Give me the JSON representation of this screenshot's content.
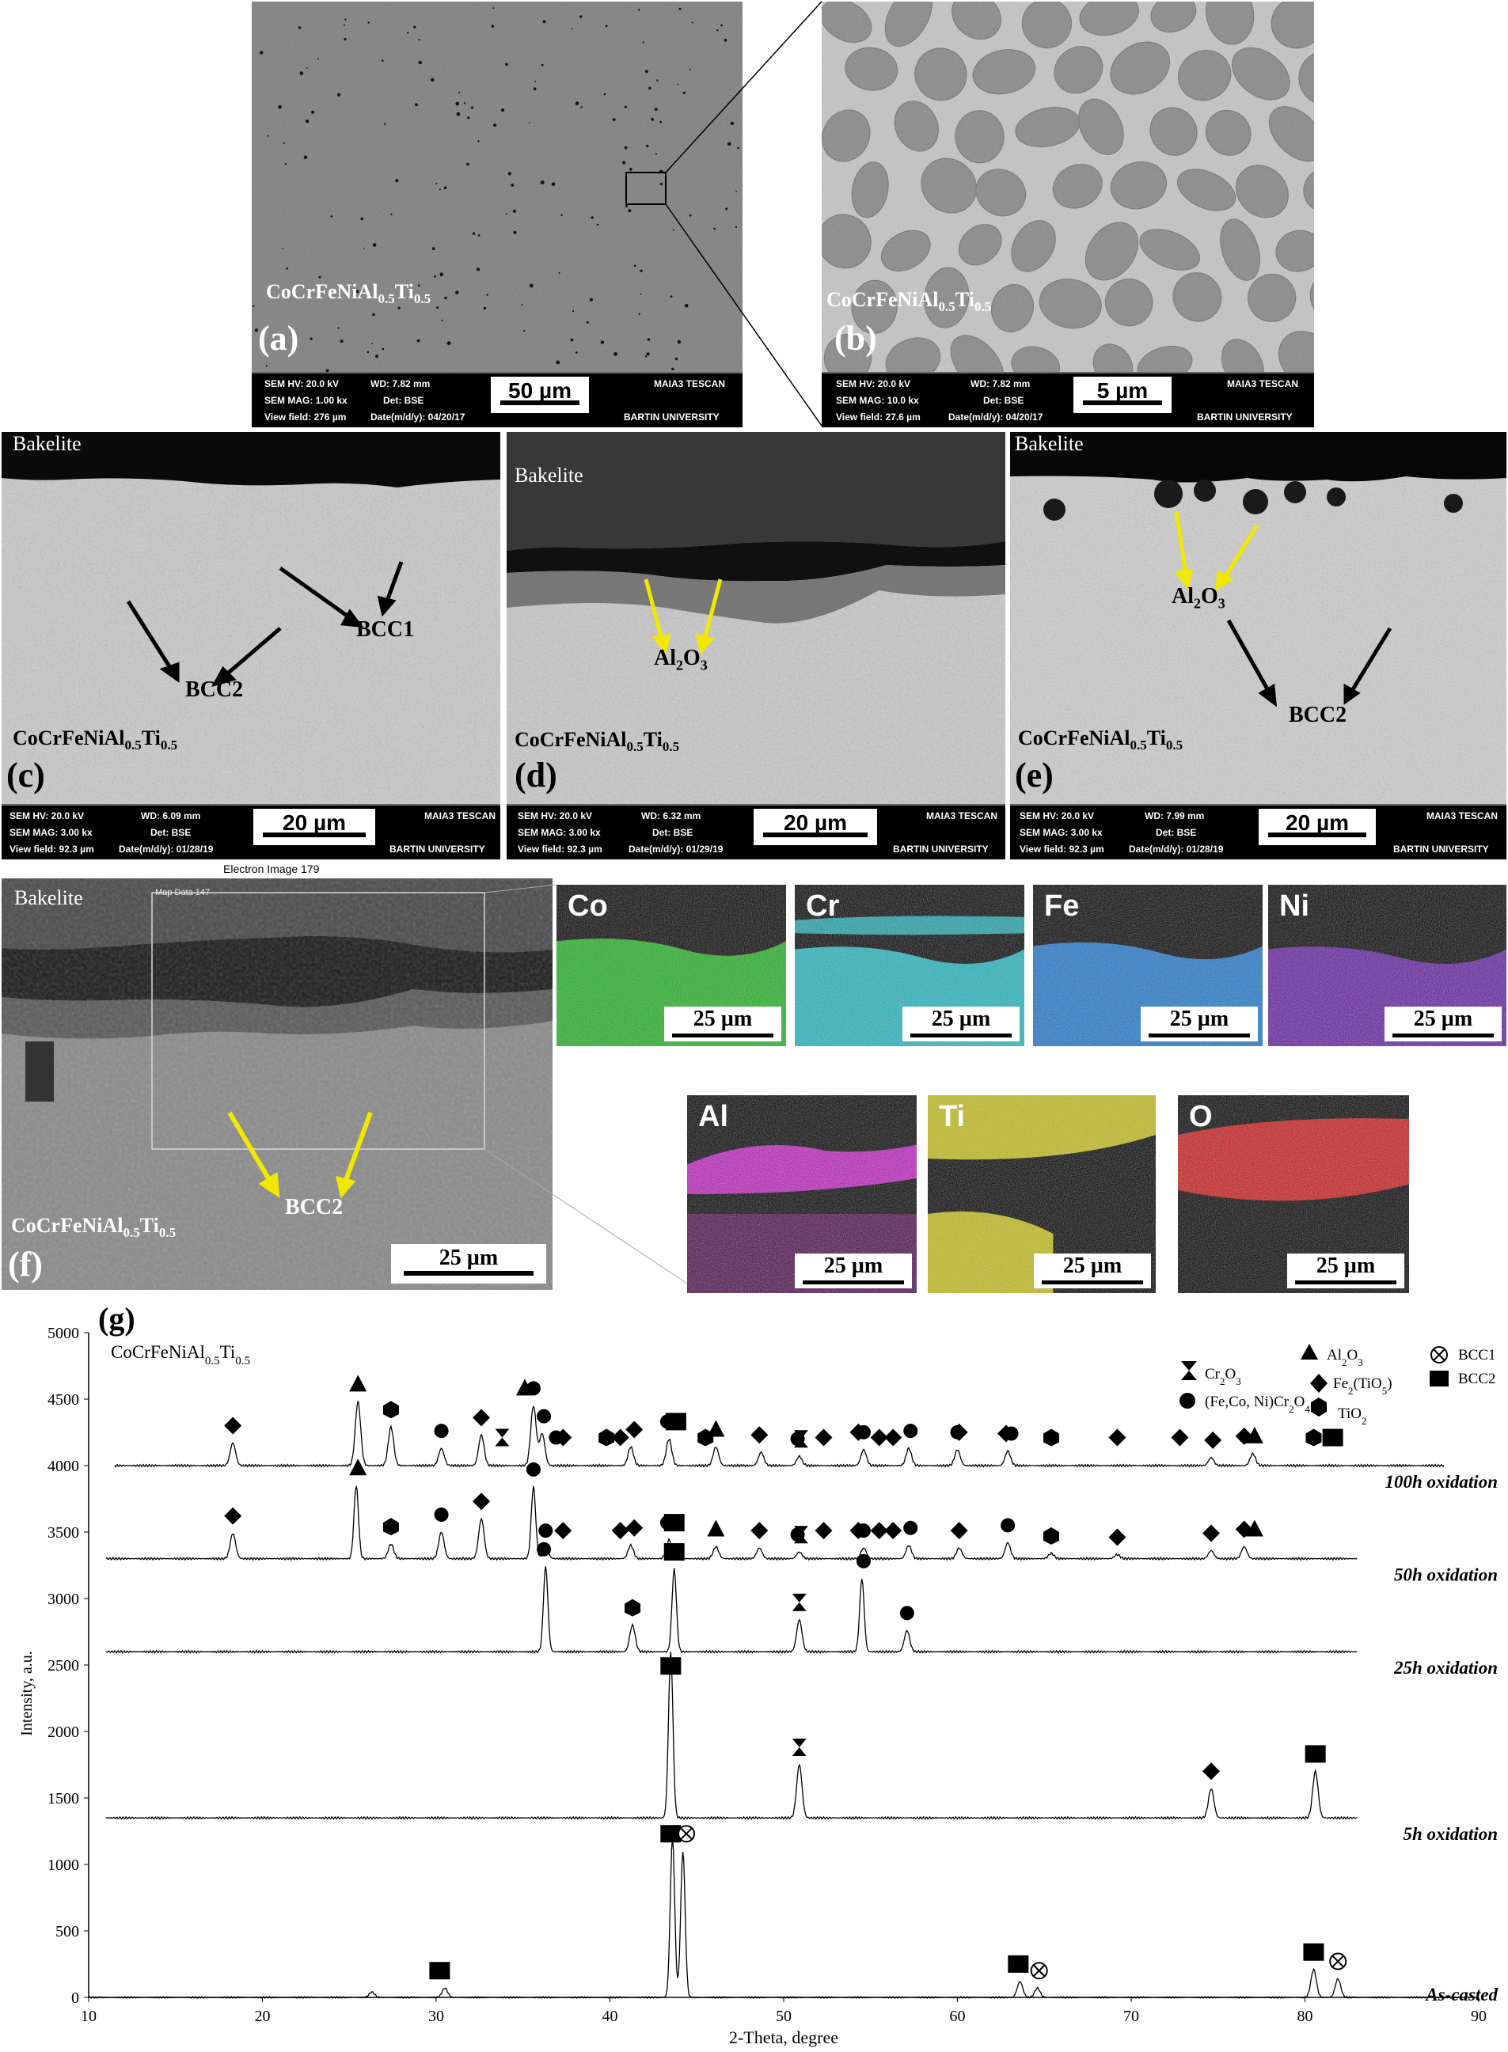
{
  "panels": {
    "a": {
      "label": "(a)",
      "title": "CoCrFeNiAl",
      "title_sub1": "0.5",
      "title_mid": "Ti",
      "title_sub2": "0.5",
      "info": {
        "hv": "SEM HV: 20.0 kV",
        "wd": "WD: 7.82 mm",
        "brand": "MAIA3 TESCAN",
        "mag": "SEM MAG: 1.00 kx",
        "det": "Det: BSE",
        "vf": "View field: 276 µm",
        "date": "Date(m/d/y): 04/20/17",
        "univ": "BARTIN UNIVERSITY"
      },
      "scale": "50 µm"
    },
    "b": {
      "label": "(b)",
      "title": "CoCrFeNiAl",
      "title_sub1": "0.5",
      "title_mid": "Ti",
      "title_sub2": "0.5",
      "info": {
        "hv": "SEM HV: 20.0 kV",
        "wd": "WD: 7.82 mm",
        "brand": "MAIA3 TESCAN",
        "mag": "SEM MAG: 10.0 kx",
        "det": "Det: BSE",
        "vf": "View field: 27.6 µm",
        "date": "Date(m/d/y): 04/20/17",
        "univ": "BARTIN UNIVERSITY"
      },
      "scale": "5 µm"
    },
    "c": {
      "label": "(c)",
      "bakelite": "Bakelite",
      "title": "CoCrFeNiAl",
      "title_sub1": "0.5",
      "title_mid": "Ti",
      "title_sub2": "0.5",
      "ann1": "BCC1",
      "ann2": "BCC2",
      "info": {
        "hv": "SEM HV: 20.0 kV",
        "wd": "WD: 6.09 mm",
        "brand": "MAIA3 TESCAN",
        "mag": "SEM MAG: 3.00 kx",
        "det": "Det: BSE",
        "vf": "View field: 92.3 µm",
        "date": "Date(m/d/y): 01/28/19",
        "univ": "BARTIN UNIVERSITY"
      },
      "scale": "20 µm"
    },
    "d": {
      "label": "(d)",
      "bakelite": "Bakelite",
      "title": "CoCrFeNiAl",
      "title_sub1": "0.5",
      "title_mid": "Ti",
      "title_sub2": "0.5",
      "ann_main": "Al",
      "ann_sub1": "2",
      "ann_mid": "O",
      "ann_sub2": "3",
      "info": {
        "hv": "SEM HV: 20.0 kV",
        "wd": "WD: 6.32 mm",
        "brand": "MAIA3 TESCAN",
        "mag": "SEM MAG: 3.00 kx",
        "det": "Det: BSE",
        "vf": "View field: 92.3 µm",
        "date": "Date(m/d/y): 01/29/19",
        "univ": "BARTIN UNIVERSITY"
      },
      "scale": "20 µm"
    },
    "e": {
      "label": "(e)",
      "bakelite": "Bakelite",
      "title": "CoCrFeNiAl",
      "title_sub1": "0.5",
      "title_mid": "Ti",
      "title_sub2": "0.5",
      "ann_main": "Al",
      "ann_sub1": "2",
      "ann_mid": "O",
      "ann_sub2": "3",
      "ann2": "BCC2",
      "info": {
        "hv": "SEM HV: 20.0 kV",
        "wd": "WD: 7.99 mm",
        "brand": "MAIA3 TESCAN",
        "mag": "SEM MAG: 3.00 kx",
        "det": "Det: BSE",
        "vf": "View field: 92.3 µm",
        "date": "Date(m/d/y): 01/28/19",
        "univ": "BARTIN UNIVERSITY"
      },
      "scale": "20 µm"
    },
    "f": {
      "label": "(f)",
      "bakelite": "Bakelite",
      "title": "CoCrFeNiAl",
      "title_sub1": "0.5",
      "title_mid": "Ti",
      "title_sub2": "0.5",
      "ann": "BCC2",
      "header": "Electron Image 179",
      "map_label": "Map Data 147",
      "scale": "25 µm"
    }
  },
  "maps": [
    {
      "element": "Co",
      "scale": "25 µm",
      "color": "#22c322"
    },
    {
      "element": "Cr",
      "scale": "25 µm",
      "color": "#22c8d2"
    },
    {
      "element": "Fe",
      "scale": "25 µm",
      "color": "#1e7fe0"
    },
    {
      "element": "Ni",
      "scale": "25 µm",
      "color": "#6a1fb0"
    },
    {
      "element": "Al",
      "scale": "25 µm",
      "color": "#d020d0"
    },
    {
      "element": "Ti",
      "scale": "25 µm",
      "color": "#d8d018"
    },
    {
      "element": "O",
      "scale": "25 µm",
      "color": "#e01818"
    }
  ],
  "xrd": {
    "label": "(g)",
    "sample": "CoCrFeNiAl",
    "ylabel": "Intensity, a.u.",
    "xlabel": "2-Theta, degree",
    "legend": {
      "cr2o3": "Cr",
      "cr2o3_a": "2",
      "cr2o3_b": "O",
      "cr2o3_c": "3",
      "spinel": "(Fe,Co, Ni)Cr",
      "spinel_a": "2",
      "spinel_b": "O",
      "spinel_c": "4",
      "al2o3": "Al",
      "al2o3_a": "2",
      "al2o3_b": "O",
      "al2o3_c": "3",
      "fetio": "Fe",
      "fetio_a": "2",
      "fetio_b": "(TiO",
      "fetio_c": "5",
      "fetio_d": ")",
      "tio2": "TiO",
      "tio2_a": "2",
      "bcc1": "BCC1",
      "bcc2": "BCC2"
    }
  },
  "chart_data": {
    "type": "line",
    "xlabel": "2-Theta, degree",
    "ylabel": "Intensity, a.u.",
    "xlim": [
      10,
      90
    ],
    "ylim": [
      0,
      5000
    ],
    "x_ticks": [
      10,
      20,
      30,
      40,
      50,
      60,
      70,
      80,
      90
    ],
    "y_ticks": [
      0,
      500,
      1000,
      1500,
      2000,
      2500,
      3000,
      3500,
      4000,
      4500,
      5000
    ],
    "series": [
      {
        "name": "As-casted",
        "baseline": 0,
        "peaks": [
          [
            26.3,
            40
          ],
          [
            30.5,
            70
          ],
          [
            43.6,
            1200
          ],
          [
            44.2,
            1100
          ],
          [
            63.6,
            120
          ],
          [
            64.6,
            70
          ],
          [
            80.5,
            210
          ],
          [
            81.9,
            140
          ]
        ]
      },
      {
        "name": "5h oxidation",
        "baseline": 1350,
        "peaks": [
          [
            43.5,
            2600
          ],
          [
            50.9,
            1750
          ],
          [
            74.6,
            1570
          ],
          [
            80.6,
            1700
          ]
        ]
      },
      {
        "name": "25h oxidation",
        "baseline": 2600,
        "peaks": [
          [
            36.3,
            3240
          ],
          [
            41.3,
            2800
          ],
          [
            43.7,
            3220
          ],
          [
            50.9,
            2840
          ],
          [
            54.5,
            3150
          ],
          [
            57.1,
            2760
          ]
        ]
      },
      {
        "name": "50h oxidation",
        "baseline": 3300,
        "peaks": [
          [
            18.3,
            3490
          ],
          [
            25.4,
            3850
          ],
          [
            27.4,
            3410
          ],
          [
            30.3,
            3500
          ],
          [
            32.6,
            3600
          ],
          [
            35.6,
            3840
          ],
          [
            36.3,
            3380
          ],
          [
            41.2,
            3400
          ],
          [
            43.4,
            3440
          ],
          [
            46.1,
            3390
          ],
          [
            48.6,
            3380
          ],
          [
            50.9,
            3350
          ],
          [
            54.6,
            3380
          ],
          [
            57.2,
            3400
          ],
          [
            60.1,
            3380
          ],
          [
            62.9,
            3420
          ],
          [
            65.4,
            3340
          ],
          [
            69.2,
            3330
          ],
          [
            74.6,
            3360
          ],
          [
            76.5,
            3390
          ]
        ]
      },
      {
        "name": "100h oxidation",
        "baseline": 4000,
        "peaks": [
          [
            18.3,
            4170
          ],
          [
            25.5,
            4480
          ],
          [
            27.4,
            4290
          ],
          [
            30.3,
            4130
          ],
          [
            32.6,
            4230
          ],
          [
            35.6,
            4450
          ],
          [
            36.1,
            4240
          ],
          [
            41.2,
            4140
          ],
          [
            43.4,
            4200
          ],
          [
            46.1,
            4140
          ],
          [
            48.7,
            4100
          ],
          [
            50.9,
            4070
          ],
          [
            54.6,
            4120
          ],
          [
            57.2,
            4130
          ],
          [
            60.0,
            4120
          ],
          [
            62.9,
            4110
          ],
          [
            74.6,
            4060
          ],
          [
            77.0,
            4090
          ]
        ]
      }
    ],
    "markers": [
      {
        "s": "100h oxidation",
        "sym": "diamond",
        "x": [
          18.3,
          32.6,
          37.3,
          40.6,
          41.4,
          48.6,
          52.3,
          54.3,
          55.5,
          56.3,
          60.1,
          62.8,
          69.2,
          72.8,
          74.7,
          76.5
        ]
      },
      {
        "s": "100h oxidation",
        "sym": "triangle",
        "x": [
          25.5,
          35.1,
          46.1,
          77.1
        ]
      },
      {
        "s": "100h oxidation",
        "sym": "hexagon",
        "x": [
          27.4,
          39.8,
          45.5,
          65.4,
          80.5
        ]
      },
      {
        "s": "100h oxidation",
        "sym": "circle",
        "x": [
          30.3,
          35.6,
          36.2,
          36.9,
          43.3,
          50.8,
          54.6,
          57.3,
          60.0,
          63.1
        ]
      },
      {
        "s": "100h oxidation",
        "sym": "hourglass",
        "x": [
          33.8,
          51.0
        ]
      },
      {
        "s": "100h oxidation",
        "sym": "square",
        "x": [
          43.8,
          81.6
        ]
      },
      {
        "s": "50h oxidation",
        "sym": "diamond",
        "x": [
          18.3,
          32.6,
          37.3,
          40.6,
          41.4,
          48.6,
          52.3,
          54.3,
          55.5,
          56.3,
          60.1,
          69.2,
          74.6,
          76.5
        ]
      },
      {
        "s": "50h oxidation",
        "sym": "triangle",
        "x": [
          25.5,
          46.1,
          77.1
        ]
      },
      {
        "s": "50h oxidation",
        "sym": "hexagon",
        "x": [
          27.4,
          65.4
        ]
      },
      {
        "s": "50h oxidation",
        "sym": "circle",
        "x": [
          30.3,
          35.6,
          36.3,
          43.3,
          50.8,
          54.6,
          57.3,
          62.9
        ]
      },
      {
        "s": "50h oxidation",
        "sym": "hourglass",
        "x": [
          51.0
        ]
      },
      {
        "s": "50h oxidation",
        "sym": "square",
        "x": [
          43.7
        ]
      },
      {
        "s": "25h oxidation",
        "sym": "circle",
        "x": [
          36.2,
          54.6,
          57.1
        ]
      },
      {
        "s": "25h oxidation",
        "sym": "hexagon",
        "x": [
          41.3
        ]
      },
      {
        "s": "25h oxidation",
        "sym": "square",
        "x": [
          43.7
        ]
      },
      {
        "s": "25h oxidation",
        "sym": "hourglass",
        "x": [
          50.9
        ]
      },
      {
        "s": "5h oxidation",
        "sym": "square",
        "x": [
          43.5,
          80.6
        ]
      },
      {
        "s": "5h oxidation",
        "sym": "hourglass",
        "x": [
          50.9
        ]
      },
      {
        "s": "5h oxidation",
        "sym": "diamond",
        "x": [
          74.6
        ]
      },
      {
        "s": "As-casted",
        "sym": "square",
        "x": [
          43.5,
          30.2,
          63.5,
          80.5
        ]
      },
      {
        "s": "As-casted",
        "sym": "otimes",
        "x": [
          44.4,
          64.7,
          81.9
        ]
      }
    ]
  }
}
